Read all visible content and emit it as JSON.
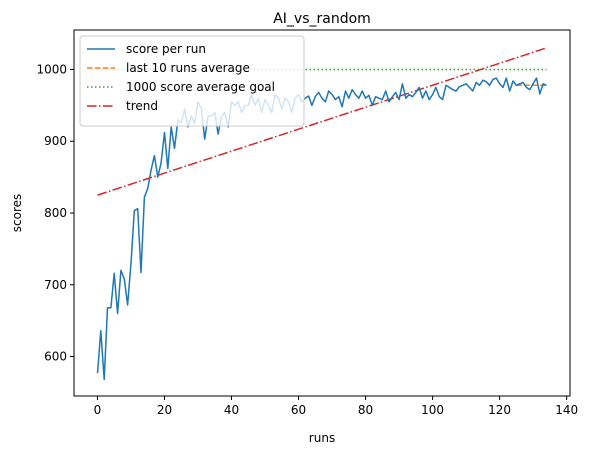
{
  "chart_data": {
    "type": "line",
    "title": "AI_vs_random",
    "xlabel": "runs",
    "ylabel": "scores",
    "xlim": [
      -7,
      141
    ],
    "ylim": [
      545,
      1055
    ],
    "xticks": [
      0,
      20,
      40,
      60,
      80,
      100,
      120,
      140
    ],
    "yticks": [
      600,
      700,
      800,
      900,
      1000
    ],
    "grid": false,
    "legend_position": "top-left",
    "series": [
      {
        "name": "score per run",
        "color": "#1f77b4",
        "style": "solid",
        "x": [
          0,
          1,
          2,
          3,
          4,
          5,
          6,
          7,
          8,
          9,
          10,
          11,
          12,
          13,
          14,
          15,
          16,
          17,
          18,
          19,
          20,
          21,
          22,
          23,
          24,
          25,
          26,
          27,
          28,
          29,
          30,
          31,
          32,
          33,
          34,
          35,
          36,
          37,
          38,
          39,
          40,
          41,
          42,
          43,
          44,
          45,
          46,
          47,
          48,
          49,
          50,
          51,
          52,
          53,
          54,
          55,
          56,
          57,
          58,
          59,
          60,
          61,
          62,
          63,
          64,
          65,
          66,
          67,
          68,
          69,
          70,
          71,
          72,
          73,
          74,
          75,
          76,
          77,
          78,
          79,
          80,
          81,
          82,
          83,
          84,
          85,
          86,
          87,
          88,
          89,
          90,
          91,
          92,
          93,
          94,
          95,
          96,
          97,
          98,
          99,
          100,
          101,
          102,
          103,
          104,
          105,
          106,
          107,
          108,
          109,
          110,
          111,
          112,
          113,
          114,
          115,
          116,
          117,
          118,
          119,
          120,
          121,
          122,
          123,
          124,
          125,
          126,
          127,
          128,
          129,
          130,
          131,
          132,
          133,
          134
        ],
        "values": [
          577,
          636,
          568,
          668,
          668,
          716,
          660,
          720,
          708,
          672,
          730,
          803,
          806,
          717,
          822,
          834,
          860,
          880,
          850,
          870,
          912,
          862,
          920,
          890,
          930,
          925,
          945,
          920,
          935,
          925,
          955,
          945,
          903,
          935,
          935,
          940,
          910,
          935,
          940,
          920,
          955,
          950,
          955,
          940,
          950,
          950,
          965,
          950,
          960,
          940,
          958,
          950,
          940,
          965,
          960,
          945,
          960,
          955,
          940,
          960,
          965,
          955,
          960,
          963,
          950,
          962,
          968,
          960,
          955,
          970,
          965,
          958,
          962,
          948,
          970,
          960,
          972,
          965,
          960,
          970,
          960,
          964,
          950,
          962,
          960,
          958,
          970,
          955,
          962,
          968,
          958,
          980,
          960,
          965,
          962,
          968,
          975,
          960,
          970,
          958,
          965,
          975,
          962,
          958,
          978,
          975,
          972,
          970,
          976,
          978,
          980,
          975,
          970,
          982,
          978,
          985,
          983,
          978,
          986,
          988,
          980,
          975,
          988,
          970,
          984,
          978,
          980,
          982,
          975,
          972,
          980,
          988,
          966,
          980,
          978
        ]
      },
      {
        "name": "last 10 runs average",
        "color": "#ff7f0e",
        "style": "dashed",
        "x": [
          125,
          134
        ],
        "values": [
          978,
          978
        ]
      },
      {
        "name": "1000 score average goal",
        "color": "#2ca02c",
        "style": "dotted",
        "x": [
          0,
          134
        ],
        "values": [
          1000,
          1000
        ]
      },
      {
        "name": "trend",
        "color": "#d62728",
        "style": "dashdot",
        "x": [
          0,
          134
        ],
        "values": [
          825,
          1030
        ]
      }
    ]
  }
}
